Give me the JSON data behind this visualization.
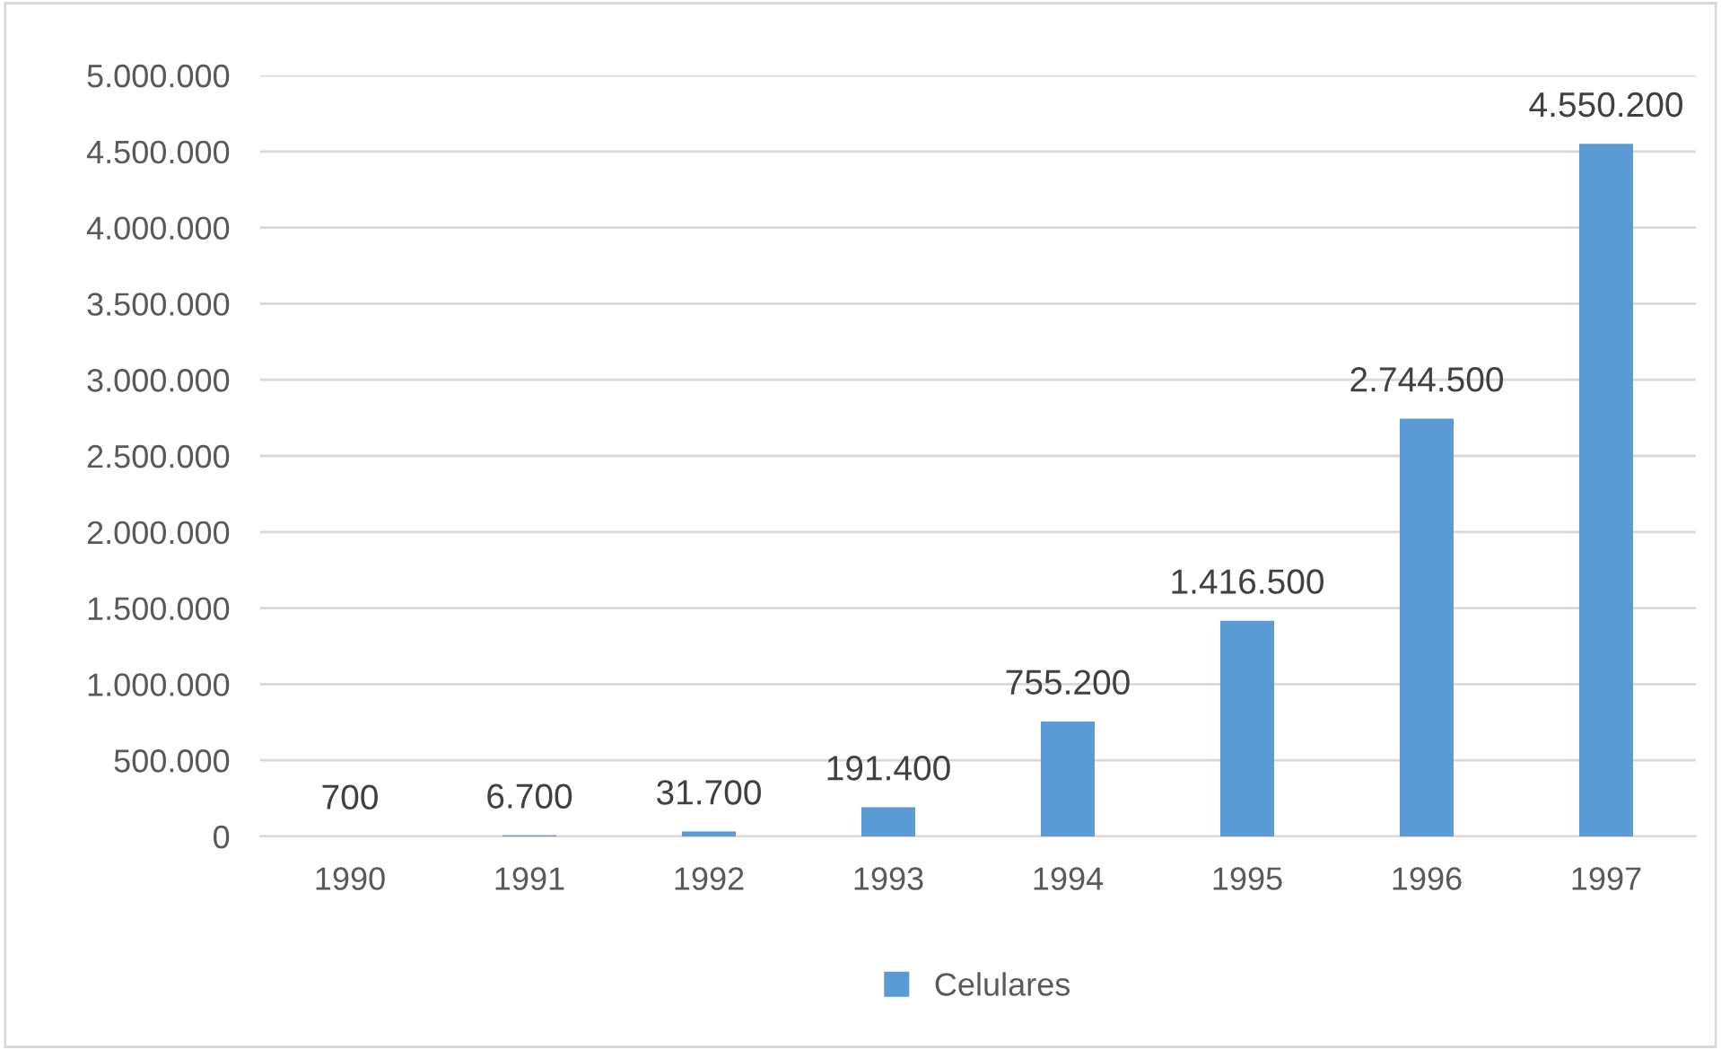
{
  "chart_data": {
    "type": "bar",
    "categories": [
      "1990",
      "1991",
      "1992",
      "1993",
      "1994",
      "1995",
      "1996",
      "1997"
    ],
    "series": [
      {
        "name": "Celulares",
        "color": "#5b9bd5",
        "values": [
          700,
          6700,
          31700,
          191400,
          755200,
          1416500,
          2744500,
          4550200
        ],
        "value_labels": [
          "700",
          "6.700",
          "31.700",
          "191.400",
          "755.200",
          "1.416.500",
          "2.744.500",
          "4.550.200"
        ]
      }
    ],
    "ylim": [
      0,
      5000000
    ],
    "yticks": [
      0,
      {
        "value": 500000,
        "label": "500.000"
      },
      {
        "value": 1000000,
        "label": "1.000.000"
      },
      {
        "value": 1500000,
        "label": "1.500.000"
      },
      {
        "value": 2000000,
        "label": "2.000.000"
      },
      {
        "value": 2500000,
        "label": "2.500.000"
      },
      {
        "value": 3000000,
        "label": "3.000.000"
      },
      {
        "value": 3500000,
        "label": "3.500.000"
      },
      {
        "value": 4000000,
        "label": "4.000.000"
      },
      {
        "value": 4500000,
        "label": "4.500.000"
      },
      {
        "value": 5000000,
        "label": "5.000.000"
      }
    ],
    "grid": "y",
    "legend": "bottom"
  }
}
